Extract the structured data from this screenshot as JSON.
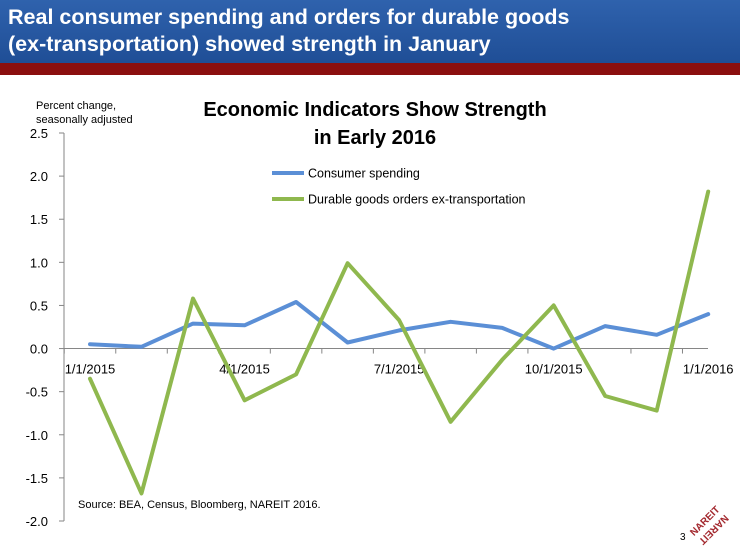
{
  "slide": {
    "title": "Real consumer spending and orders for durable goods\n(ex-transportation) showed strength in January",
    "page_number": "3",
    "source": "Source: BEA, Census, Bloomberg, NAREIT 2016.",
    "logo_text": "NAREIT"
  },
  "colors": {
    "header_bg": "#2a5aa6",
    "header_rule": "#8b0f0f",
    "consumer": "#5b8fd6",
    "durable": "#8fb84e",
    "logo": "#a3282e"
  },
  "chart_data": {
    "type": "line",
    "title": "Economic Indicators Show Strength\nin Early 2016",
    "ylabel": "Percent change,\nseasonally adjusted",
    "ylim": [
      -2.0,
      2.5
    ],
    "yticks": [
      2.5,
      2.0,
      1.5,
      1.0,
      0.5,
      0.0,
      -0.5,
      -1.0,
      -1.5,
      -2.0
    ],
    "ytick_labels": [
      "2.5",
      "2.0",
      "1.5",
      "1.0",
      "0.5",
      "0.0",
      "-0.5",
      "-1.0",
      "-1.5",
      "-2.0"
    ],
    "x": [
      "2015-01",
      "2015-02",
      "2015-03",
      "2015-04",
      "2015-05",
      "2015-06",
      "2015-07",
      "2015-08",
      "2015-09",
      "2015-10",
      "2015-11",
      "2015-12",
      "2016-01"
    ],
    "xtick_labels": [
      "1/1/2015",
      "4/1/2015",
      "7/1/2015",
      "10/1/2015",
      "1/1/2016"
    ],
    "legend_position": "top-right",
    "grid": false,
    "series": [
      {
        "name": "Consumer spending",
        "values": [
          0.05,
          0.02,
          0.29,
          0.27,
          0.54,
          0.07,
          0.21,
          0.31,
          0.24,
          0.0,
          0.26,
          0.16,
          0.4
        ]
      },
      {
        "name": "Durable goods orders ex-transportation",
        "values": [
          -0.35,
          -1.68,
          0.58,
          -0.6,
          -0.3,
          0.99,
          0.33,
          -0.85,
          -0.13,
          0.5,
          -0.55,
          -0.72,
          1.82
        ]
      }
    ]
  }
}
